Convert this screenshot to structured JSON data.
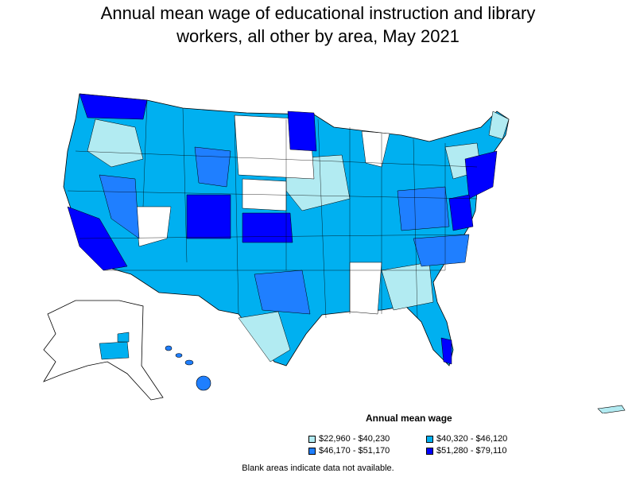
{
  "title_line1": "Annual mean wage of educational instruction and library",
  "title_line2": "workers, all other by area, May 2021",
  "legend": {
    "title": "Annual mean wage",
    "items": [
      {
        "label": "$22,960 - $40,230",
        "color": "#b2ebf2"
      },
      {
        "label": "$40,320 - $46,120",
        "color": "#00b0f0"
      },
      {
        "label": "$46,170 - $51,170",
        "color": "#1f7fff"
      },
      {
        "label": "$51,280 - $79,110",
        "color": "#0000ff"
      }
    ]
  },
  "footnote": "Blank areas indicate data not available.",
  "colors": {
    "tier1": "#b2ebf2",
    "tier2": "#00b0f0",
    "tier3": "#1f7fff",
    "tier4": "#0000ff",
    "no_data": "#ffffff",
    "border": "#000000"
  }
}
